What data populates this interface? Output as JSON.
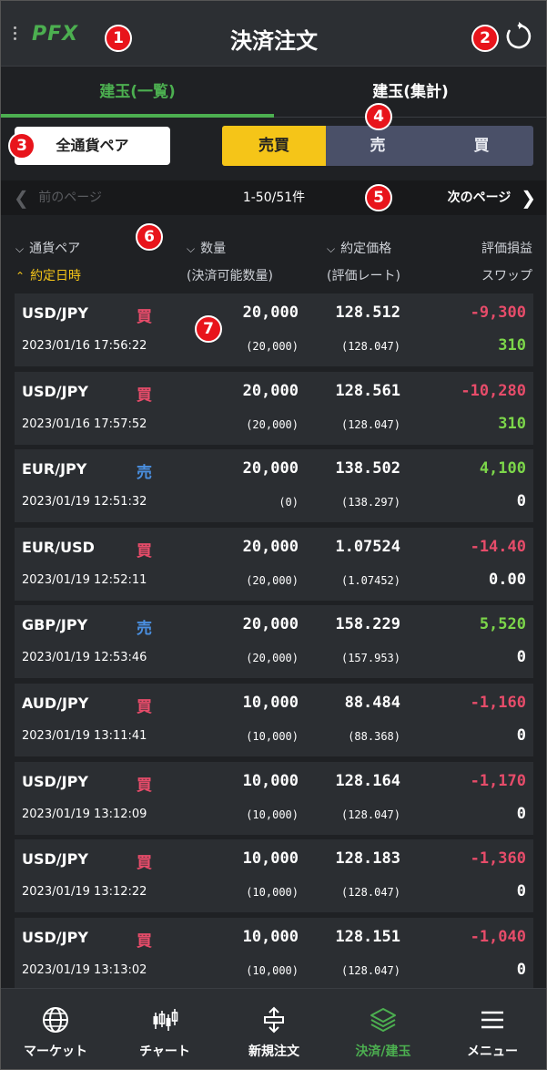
{
  "header": {
    "logo": "PFX",
    "title": "決済注文"
  },
  "tabs": [
    {
      "label": "建玉(一覧)",
      "active": true
    },
    {
      "label": "建玉(集計)",
      "active": false
    }
  ],
  "filter": {
    "pair_button": "全通貨ペア",
    "segments": [
      {
        "label": "売買",
        "active": true
      },
      {
        "label": "売",
        "active": false
      },
      {
        "label": "買",
        "active": false
      }
    ]
  },
  "pager": {
    "prev": "前のページ",
    "count": "1-50/51件",
    "next": "次のページ"
  },
  "columns": {
    "pair": "通貨ペア",
    "trade_datetime": "約定日時",
    "qty": "数量",
    "qty_available": "(決済可能数量)",
    "price": "約定価格",
    "rate": "(評価レート)",
    "pl": "評価損益",
    "swap": "スワップ"
  },
  "badges": [
    "1",
    "2",
    "3",
    "4",
    "5",
    "6",
    "7"
  ],
  "rows": [
    {
      "pair": "USD/JPY",
      "side": "買",
      "side_type": "buy",
      "date": "2023/01/16 17:56:22",
      "qty": "20,000",
      "qty_available": "(20,000)",
      "price": "128.512",
      "rate": "(128.047)",
      "pl": "-9,300",
      "pl_type": "neg",
      "swap": "310",
      "swap_type": "pos"
    },
    {
      "pair": "USD/JPY",
      "side": "買",
      "side_type": "buy",
      "date": "2023/01/16 17:57:52",
      "qty": "20,000",
      "qty_available": "(20,000)",
      "price": "128.561",
      "rate": "(128.047)",
      "pl": "-10,280",
      "pl_type": "neg",
      "swap": "310",
      "swap_type": "pos"
    },
    {
      "pair": "EUR/JPY",
      "side": "売",
      "side_type": "sell",
      "date": "2023/01/19 12:51:32",
      "qty": "20,000",
      "qty_available": "(0)",
      "price": "138.502",
      "rate": "(138.297)",
      "pl": "4,100",
      "pl_type": "pos",
      "swap": "0",
      "swap_type": "zero"
    },
    {
      "pair": "EUR/USD",
      "side": "買",
      "side_type": "buy",
      "date": "2023/01/19 12:52:11",
      "qty": "20,000",
      "qty_available": "(20,000)",
      "price": "1.07524",
      "rate": "(1.07452)",
      "pl": "-14.40",
      "pl_type": "neg",
      "swap": "0.00",
      "swap_type": "zero"
    },
    {
      "pair": "GBP/JPY",
      "side": "売",
      "side_type": "sell",
      "date": "2023/01/19 12:53:46",
      "qty": "20,000",
      "qty_available": "(20,000)",
      "price": "158.229",
      "rate": "(157.953)",
      "pl": "5,520",
      "pl_type": "pos",
      "swap": "0",
      "swap_type": "zero"
    },
    {
      "pair": "AUD/JPY",
      "side": "買",
      "side_type": "buy",
      "date": "2023/01/19 13:11:41",
      "qty": "10,000",
      "qty_available": "(10,000)",
      "price": "88.484",
      "rate": "(88.368)",
      "pl": "-1,160",
      "pl_type": "neg",
      "swap": "0",
      "swap_type": "zero"
    },
    {
      "pair": "USD/JPY",
      "side": "買",
      "side_type": "buy",
      "date": "2023/01/19 13:12:09",
      "qty": "10,000",
      "qty_available": "(10,000)",
      "price": "128.164",
      "rate": "(128.047)",
      "pl": "-1,170",
      "pl_type": "neg",
      "swap": "0",
      "swap_type": "zero"
    },
    {
      "pair": "USD/JPY",
      "side": "買",
      "side_type": "buy",
      "date": "2023/01/19 13:12:22",
      "qty": "10,000",
      "qty_available": "(10,000)",
      "price": "128.183",
      "rate": "(128.047)",
      "pl": "-1,360",
      "pl_type": "neg",
      "swap": "0",
      "swap_type": "zero"
    },
    {
      "pair": "USD/JPY",
      "side": "買",
      "side_type": "buy",
      "date": "2023/01/19 13:13:02",
      "qty": "10,000",
      "qty_available": "(10,000)",
      "price": "128.151",
      "rate": "(128.047)",
      "pl": "-1,040",
      "pl_type": "neg",
      "swap": "0",
      "swap_type": "zero"
    }
  ],
  "bottom_nav": [
    {
      "label": "マーケット",
      "icon": "globe-icon",
      "active": false
    },
    {
      "label": "チャート",
      "icon": "candlestick-icon",
      "active": false
    },
    {
      "label": "新規注文",
      "icon": "new-order-icon",
      "active": false
    },
    {
      "label": "決済/建玉",
      "icon": "layers-icon",
      "active": true
    },
    {
      "label": "メニュー",
      "icon": "menu-icon",
      "active": false
    }
  ],
  "colors": {
    "accent_green": "#4caf50",
    "buy_red": "#e74c6a",
    "sell_blue": "#4a8fe0",
    "profit_green": "#7cd64a",
    "active_yellow": "#f5c518",
    "badge_red": "#e8141b"
  }
}
